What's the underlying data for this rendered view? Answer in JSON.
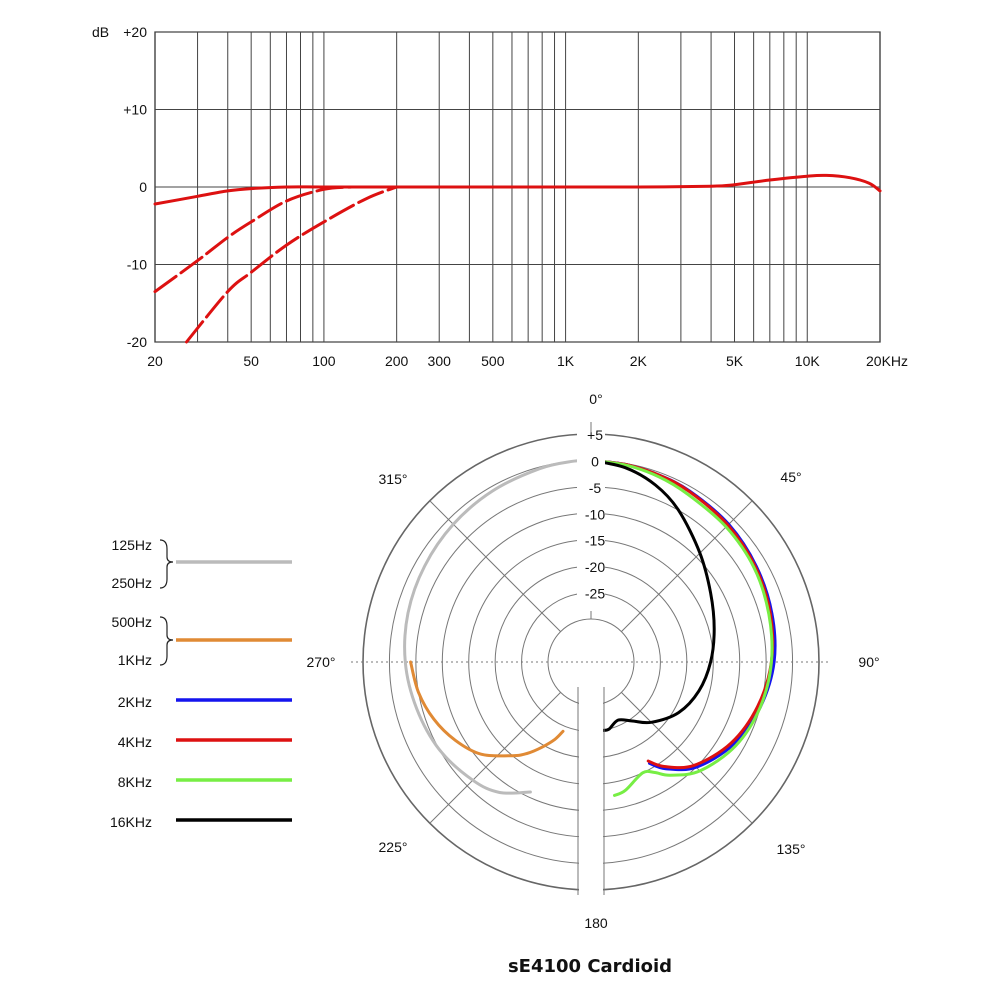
{
  "chart_data": [
    {
      "type": "line",
      "x_scale": "log",
      "xlim": [
        20,
        20000
      ],
      "ylim": [
        -20,
        20
      ],
      "y_unit_label": "dB",
      "y_tick_labels": [
        "+20",
        "+10",
        "0",
        "-10",
        "-20"
      ],
      "y_tick_values": [
        20,
        10,
        0,
        -10,
        -20
      ],
      "x_tick_labels": [
        "20",
        "50",
        "100",
        "200",
        "300",
        "500",
        "1K",
        "2K",
        "5K",
        "10K",
        "20KHz"
      ],
      "x_tick_values": [
        20,
        50,
        100,
        200,
        300,
        500,
        1000,
        2000,
        5000,
        10000,
        20000
      ],
      "grid": true,
      "line_color": "#dd1111",
      "series": [
        {
          "style": "solid",
          "x": [
            20,
            30,
            40,
            50,
            70,
            100,
            200,
            500,
            1000,
            2000,
            4000,
            5000,
            7000,
            10000,
            12000,
            15000,
            18000,
            20000
          ],
          "y": [
            -2.2,
            -1.2,
            -0.5,
            -0.2,
            0,
            0,
            0,
            0,
            0,
            0,
            0.1,
            0.3,
            0.9,
            1.4,
            1.5,
            1.2,
            0.5,
            -0.5
          ]
        },
        {
          "style": "dashed",
          "x": [
            20,
            30,
            40,
            50,
            70,
            100,
            130
          ],
          "y": [
            -13.5,
            -9.5,
            -6.5,
            -4.5,
            -1.8,
            -0.3,
            0
          ]
        },
        {
          "style": "dashed",
          "x": [
            27,
            40,
            50,
            70,
            100,
            150,
            200
          ],
          "y": [
            -20,
            -13.5,
            -11,
            -7.5,
            -4.5,
            -1.5,
            0
          ]
        }
      ]
    },
    {
      "type": "polar",
      "title": "sE4100 Cardioid",
      "r_range": [
        -30,
        5
      ],
      "r_tick_labels": [
        "+5",
        "0",
        "-5",
        "-10",
        "-15",
        "-20",
        "-25"
      ],
      "r_tick_values": [
        5,
        0,
        -5,
        -10,
        -15,
        -20,
        -25
      ],
      "angle_labels": [
        {
          "text": "0°",
          "angle": 0
        },
        {
          "text": "45°",
          "angle": 45
        },
        {
          "text": "90°",
          "angle": 90
        },
        {
          "text": "135°",
          "angle": 135
        },
        {
          "text": "180",
          "angle": 180
        },
        {
          "text": "225°",
          "angle": 225
        },
        {
          "text": "270°",
          "angle": 270
        },
        {
          "text": "315°",
          "angle": 315
        }
      ],
      "legend": [
        {
          "labels": [
            "125Hz",
            "250Hz"
          ],
          "color": "#bbbbbb"
        },
        {
          "labels": [
            "500Hz",
            "1KHz"
          ],
          "color": "#e08a35"
        },
        {
          "labels": [
            "2KHz"
          ],
          "color": "#1414ee"
        },
        {
          "labels": [
            "4KHz"
          ],
          "color": "#dd1111"
        },
        {
          "labels": [
            "8KHz"
          ],
          "color": "#77ee44"
        },
        {
          "labels": [
            "16KHz"
          ],
          "color": "#000000"
        }
      ],
      "series": [
        {
          "name": "125Hz / 250Hz",
          "color": "#bbbbbb",
          "angles": [
            360,
            355,
            345,
            330,
            315,
            300,
            285,
            270,
            255,
            240,
            225,
            215,
            205
          ],
          "db": [
            0,
            0,
            -0.3,
            -0.8,
            -1.3,
            -1.8,
            -2.3,
            -3,
            -4,
            -5,
            -6.5,
            -8,
            -11
          ]
        },
        {
          "name": "500Hz / 1KHz",
          "color": "#e08a35",
          "angles": [
            270,
            260,
            250,
            240,
            230,
            220,
            215,
            210,
            205,
            202
          ],
          "db": [
            -4,
            -5,
            -6.5,
            -8.5,
            -11,
            -15,
            -17,
            -19.5,
            -22,
            -24
          ]
        },
        {
          "name": "2KHz",
          "color": "#1414ee",
          "angles": [
            0,
            10,
            20,
            30,
            45,
            60,
            75,
            90,
            105,
            120,
            135,
            145,
            150
          ],
          "db": [
            0,
            -0.2,
            -0.5,
            -0.8,
            -1.3,
            -2,
            -2.7,
            -3.5,
            -5,
            -7,
            -10,
            -13.5,
            -16
          ]
        },
        {
          "name": "4KHz",
          "color": "#dd1111",
          "angles": [
            0,
            10,
            20,
            30,
            45,
            60,
            75,
            90,
            105,
            120,
            135,
            145,
            150
          ],
          "db": [
            0,
            -0.2,
            -0.5,
            -0.9,
            -1.5,
            -2.2,
            -3,
            -4,
            -5.5,
            -7.5,
            -10.5,
            -14,
            -16.5
          ]
        },
        {
          "name": "8KHz",
          "color": "#77ee44",
          "angles": [
            0,
            10,
            20,
            30,
            45,
            60,
            75,
            90,
            105,
            120,
            135,
            145,
            150,
            155,
            165,
            170
          ],
          "db": [
            0,
            -0.3,
            -0.8,
            -1.5,
            -2,
            -2.5,
            -3.3,
            -4,
            -5,
            -6.5,
            -9,
            -12,
            -14,
            -15,
            -13,
            -12.5
          ]
        },
        {
          "name": "16KHz",
          "color": "#000000",
          "angles": [
            0,
            10,
            20,
            30,
            45,
            60,
            75,
            90,
            105,
            120,
            135,
            145,
            155,
            165,
            170
          ],
          "db": [
            0,
            -0.8,
            -2.5,
            -5,
            -9,
            -12,
            -14,
            -15.5,
            -17,
            -19,
            -22,
            -24.5,
            -26,
            -25,
            -25
          ]
        }
      ]
    }
  ]
}
